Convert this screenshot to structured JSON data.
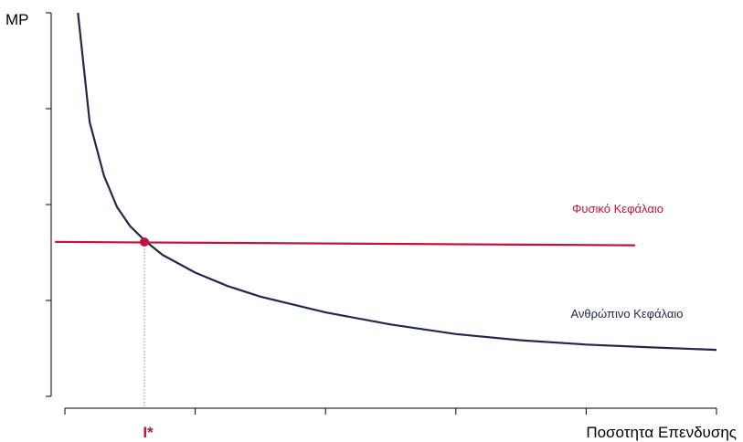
{
  "chart_data": {
    "type": "line",
    "title": "",
    "ylabel": "MP",
    "xlabel": "Ποσοτητα Επενδυσης",
    "xlim": [
      0,
      10
    ],
    "ylim": [
      0,
      8
    ],
    "x_ticks": [
      0,
      2,
      4,
      6,
      8,
      10
    ],
    "y_ticks": [
      0,
      2,
      4,
      6,
      8
    ],
    "grid": false,
    "series": [
      {
        "name": "Φυσικό Κεφάλαιο",
        "color": "#c0143c",
        "points": [
          [
            -0.15,
            3.22
          ],
          [
            8.75,
            3.15
          ]
        ]
      },
      {
        "name": "Ανθρώπινο Κεφάλαιο",
        "color": "#1f2a4a",
        "points": [
          [
            0.2,
            8.0
          ],
          [
            0.38,
            5.72
          ],
          [
            0.6,
            4.6
          ],
          [
            0.8,
            3.95
          ],
          [
            1.0,
            3.55
          ],
          [
            1.25,
            3.22
          ],
          [
            1.5,
            2.95
          ],
          [
            2.0,
            2.58
          ],
          [
            2.5,
            2.3
          ],
          [
            3.0,
            2.08
          ],
          [
            4.0,
            1.75
          ],
          [
            5.0,
            1.5
          ],
          [
            6.0,
            1.3
          ],
          [
            7.0,
            1.17
          ],
          [
            8.0,
            1.08
          ],
          [
            9.0,
            1.02
          ],
          [
            10.0,
            0.97
          ]
        ]
      }
    ],
    "intersection": {
      "label": "I*",
      "x": 1.22,
      "y": 3.22,
      "color": "#c0143c"
    }
  }
}
